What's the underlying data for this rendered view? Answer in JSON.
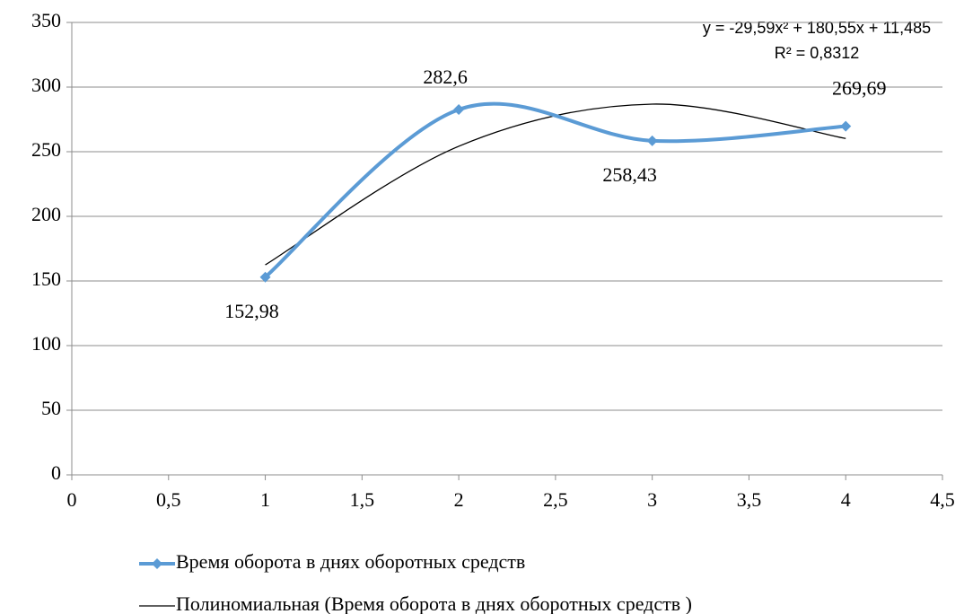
{
  "chart_data": {
    "type": "scatter",
    "x": [
      1,
      2,
      3,
      4
    ],
    "series": [
      {
        "name": "Время оборота в днях оборотных средств",
        "color": "#5b9bd5",
        "values": [
          152.98,
          282.6,
          258.43,
          269.69
        ],
        "value_labels": [
          "152,98",
          "282,6",
          "258,43",
          "269,69"
        ]
      },
      {
        "name": "Полиномиальная (Время оборота в днях оборотных средств )",
        "color": "#000000",
        "values": [
          162.445,
          254.225,
          286.825,
          260.245
        ]
      }
    ],
    "annotations": [
      "y = -29,59x² + 180,55x + 11,485",
      "R² = 0,8312"
    ],
    "xlim": [
      0,
      4.5
    ],
    "xticks": [
      0,
      {
        "value": 0.5,
        "label": "0,5"
      },
      1,
      {
        "value": 1.5,
        "label": "1,5"
      },
      2,
      {
        "value": 2.5,
        "label": "2,5"
      },
      3,
      {
        "value": 3.5,
        "label": "3,5"
      },
      4,
      {
        "value": 4.5,
        "label": "4,5"
      }
    ],
    "ylim": [
      0,
      350
    ],
    "yticks": [
      0,
      50,
      100,
      150,
      200,
      250,
      300,
      350
    ],
    "grid": true
  }
}
